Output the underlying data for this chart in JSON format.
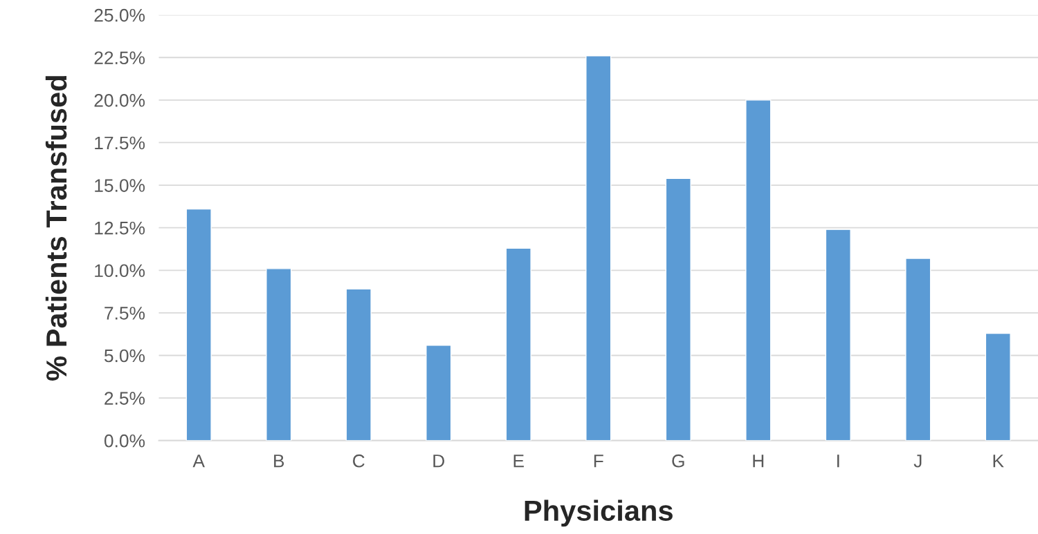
{
  "chart_data": {
    "type": "bar",
    "xlabel": "Physicians",
    "ylabel": "% Patients Transfused",
    "categories": [
      "A",
      "B",
      "C",
      "D",
      "E",
      "F",
      "G",
      "H",
      "I",
      "J",
      "K"
    ],
    "values": [
      13.6,
      10.1,
      8.9,
      5.6,
      11.3,
      22.6,
      15.4,
      20.0,
      12.4,
      10.7,
      6.3
    ],
    "color": "#5b9bd5",
    "ylim": [
      0,
      25
    ],
    "yticks": [
      {
        "value": 0,
        "label": "0.0%"
      },
      {
        "value": 2.5,
        "label": "2.5%"
      },
      {
        "value": 5,
        "label": "5.0%"
      },
      {
        "value": 7.5,
        "label": "7.5%"
      },
      {
        "value": 10,
        "label": "10.0%"
      },
      {
        "value": 12.5,
        "label": "12.5%"
      },
      {
        "value": 15,
        "label": "15.0%"
      },
      {
        "value": 17.5,
        "label": "17.5%"
      },
      {
        "value": 20,
        "label": "20.0%"
      },
      {
        "value": 22.5,
        "label": "22.5%"
      },
      {
        "value": 25,
        "label": "25.0%"
      }
    ],
    "grid": "y",
    "legend": false
  }
}
